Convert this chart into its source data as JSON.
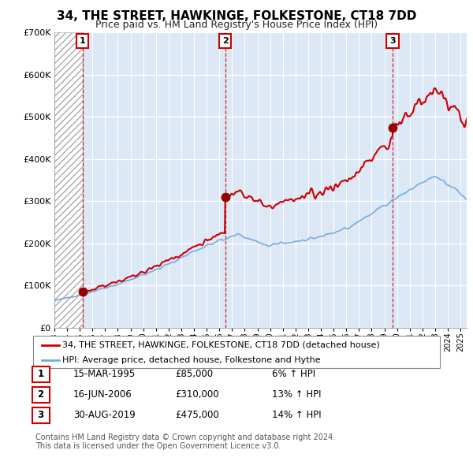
{
  "title": "34, THE STREET, HAWKINGE, FOLKESTONE, CT18 7DD",
  "subtitle": "Price paid vs. HM Land Registry's House Price Index (HPI)",
  "sale_labels": [
    "1",
    "2",
    "3"
  ],
  "sale_times": [
    1995.21,
    2006.46,
    2019.66
  ],
  "sale_prices": [
    85000,
    310000,
    475000
  ],
  "legend_line1": "34, THE STREET, HAWKINGE, FOLKESTONE, CT18 7DD (detached house)",
  "legend_line2": "HPI: Average price, detached house, Folkestone and Hythe",
  "table_rows": [
    [
      "1",
      "15-MAR-1995",
      "£85,000",
      "6% ↑ HPI"
    ],
    [
      "2",
      "16-JUN-2006",
      "£310,000",
      "13% ↑ HPI"
    ],
    [
      "3",
      "30-AUG-2019",
      "£475,000",
      "14% ↑ HPI"
    ]
  ],
  "footer": "Contains HM Land Registry data © Crown copyright and database right 2024.\nThis data is licensed under the Open Government Licence v3.0.",
  "price_line_color": "#cc0000",
  "hpi_line_color": "#7aaadd",
  "sale_marker_color": "#990000",
  "vline_color": "#cc0000",
  "chart_bg_color": "#dce8f5",
  "hatch_color": "#bbbbbb",
  "ylim": [
    0,
    700000
  ],
  "yticks": [
    0,
    100000,
    200000,
    300000,
    400000,
    500000,
    600000,
    700000
  ],
  "ytick_labels": [
    "£0",
    "£100K",
    "£200K",
    "£300K",
    "£400K",
    "£500K",
    "£600K",
    "£700K"
  ],
  "xlim_start": 1993.0,
  "xlim_end": 2025.5,
  "title_fontsize": 11,
  "subtitle_fontsize": 9,
  "axis_fontsize": 8
}
